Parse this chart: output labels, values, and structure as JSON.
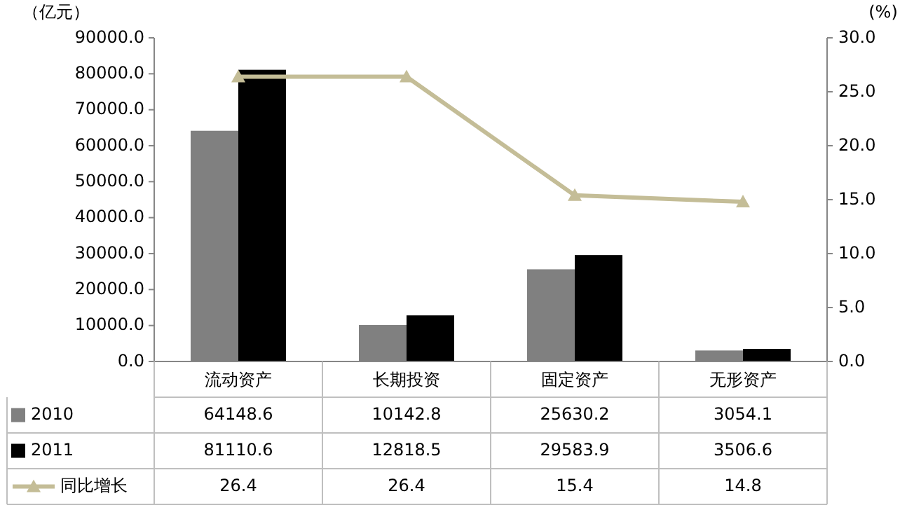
{
  "chart_data": {
    "type": "bar",
    "ylabel": "（亿元）",
    "y2label": "(%)",
    "categories": [
      "流动资产",
      "长期投资",
      "固定资产",
      "无形资产"
    ],
    "series": [
      {
        "name": "2010",
        "color": "#808080",
        "values": [
          64148.6,
          10142.8,
          25630.2,
          3054.1
        ]
      },
      {
        "name": "2011",
        "color": "#000000",
        "values": [
          81110.6,
          12818.5,
          29583.9,
          3506.6
        ]
      },
      {
        "name": "同比增长",
        "type": "line",
        "axis": "y2",
        "color": "#c4bd97",
        "marker": "triangle",
        "values": [
          26.4,
          26.4,
          15.4,
          14.8
        ]
      }
    ],
    "ylim": [
      0,
      90000
    ],
    "yticks": [
      {
        "value": 0,
        "label": "0.0"
      },
      {
        "value": 10000,
        "label": "10000.0"
      },
      {
        "value": 20000,
        "label": "20000.0"
      },
      {
        "value": 30000,
        "label": "30000.0"
      },
      {
        "value": 40000,
        "label": "40000.0"
      },
      {
        "value": 50000,
        "label": "50000.0"
      },
      {
        "value": 60000,
        "label": "60000.0"
      },
      {
        "value": 70000,
        "label": "70000.0"
      },
      {
        "value": 80000,
        "label": "80000.0"
      },
      {
        "value": 90000,
        "label": "90000.0"
      }
    ],
    "y2lim": [
      0,
      30
    ],
    "y2ticks": [
      {
        "value": 0,
        "label": "0.0"
      },
      {
        "value": 5,
        "label": "5.0"
      },
      {
        "value": 10,
        "label": "10.0"
      },
      {
        "value": 15,
        "label": "15.0"
      },
      {
        "value": 20,
        "label": "20.0"
      },
      {
        "value": 25,
        "label": "25.0"
      },
      {
        "value": 30,
        "label": "30.0"
      }
    ],
    "data_labels": true,
    "legend": "bottom",
    "grid": false
  }
}
